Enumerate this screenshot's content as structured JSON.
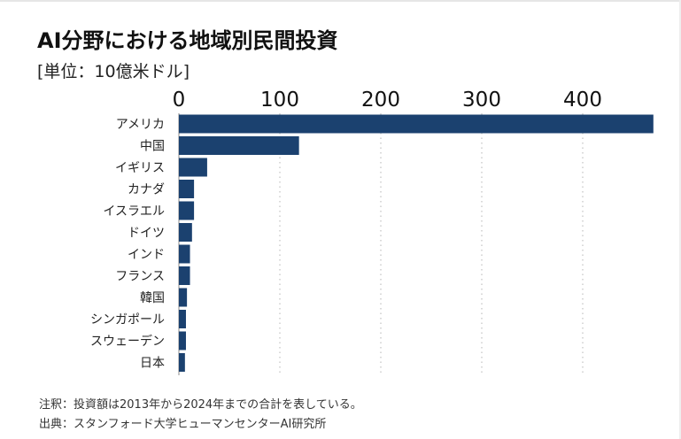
{
  "chart_data": {
    "type": "bar",
    "orientation": "horizontal",
    "title": "AI分野における地域別民間投資",
    "unit": "[単位：10億米ドル]",
    "categories": [
      "アメリカ",
      "中国",
      "イギリス",
      "カナダ",
      "イスラエル",
      "ドイツ",
      "インド",
      "フランス",
      "韓国",
      "シンガポール",
      "スウェーデン",
      "日本"
    ],
    "values": [
      470,
      119,
      28,
      15,
      15,
      13,
      11,
      11,
      8,
      7,
      7,
      6
    ],
    "xticks": [
      "0",
      "100",
      "200",
      "300",
      "400"
    ],
    "xlim": [
      0,
      470
    ],
    "grid": "vertical dotted",
    "bar_color": "#1b416f",
    "axis_position": "top"
  },
  "notes": {
    "note1": "注釈：投資額は2013年から2024年までの合計を表している。",
    "source": "出典：スタンフォード大学ヒューマンセンターAI研究所"
  }
}
